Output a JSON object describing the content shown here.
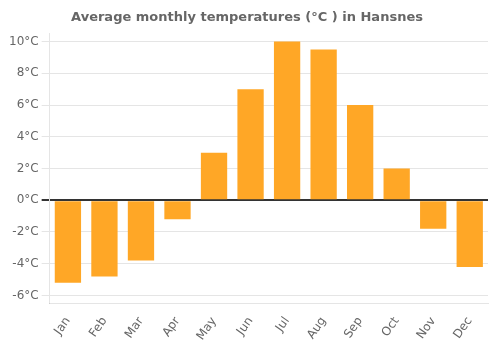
{
  "chart_data": {
    "type": "bar",
    "title": "Average monthly temperatures (°C ) in Hansnes",
    "categories": [
      "Jan",
      "Feb",
      "Mar",
      "Apr",
      "May",
      "Jun",
      "Jul",
      "Aug",
      "Sep",
      "Oct",
      "Nov",
      "Dec"
    ],
    "values": [
      -5.2,
      -4.8,
      -3.8,
      -1.2,
      3.0,
      7.0,
      10.0,
      9.5,
      6.0,
      2.0,
      -1.8,
      -4.2
    ],
    "color": "#FFA726",
    "ylim": [
      -6.5,
      10.5
    ],
    "yticks": [
      {
        "value": -6,
        "label": "-6°C"
      },
      {
        "value": -4,
        "label": "-4°C"
      },
      {
        "value": -2,
        "label": "-2°C"
      },
      {
        "value": 0,
        "label": "0°C"
      },
      {
        "value": 2,
        "label": "2°C"
      },
      {
        "value": 4,
        "label": "4°C"
      },
      {
        "value": 6,
        "label": "6°C"
      },
      {
        "value": 8,
        "label": "8°C"
      },
      {
        "value": 10,
        "label": "10°C"
      }
    ],
    "grid": true
  }
}
